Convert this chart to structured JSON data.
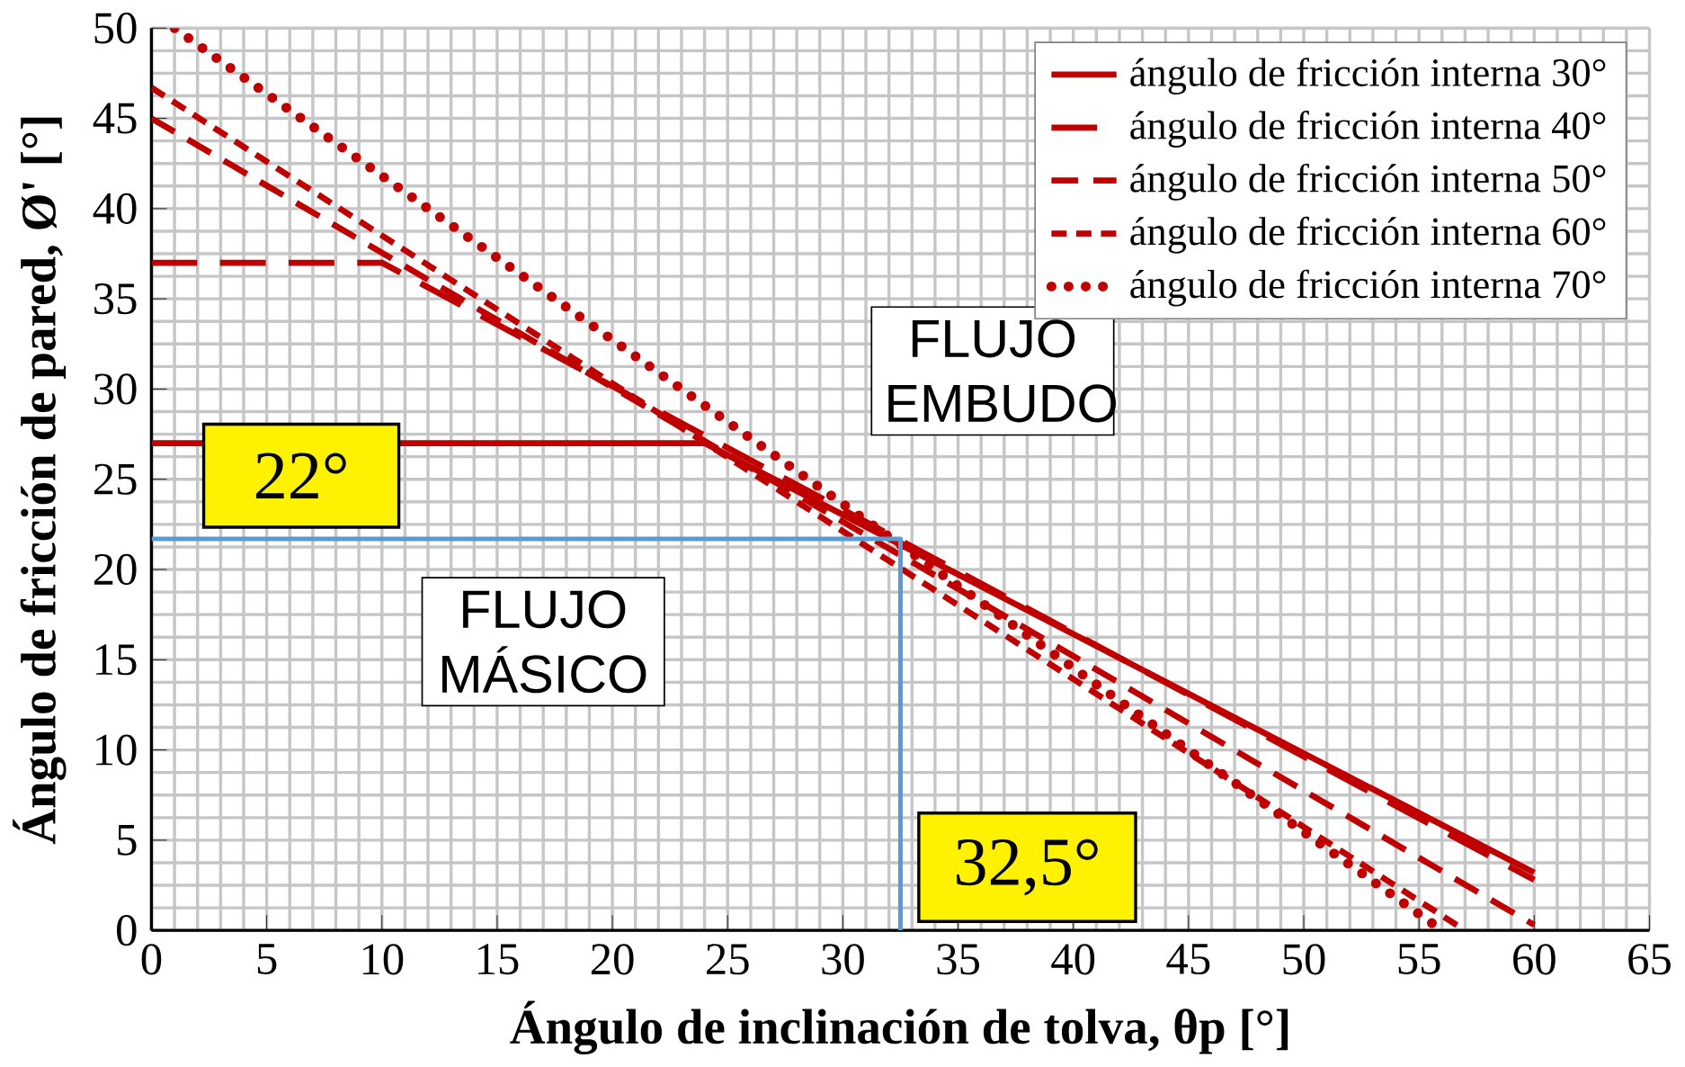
{
  "chart_data": {
    "type": "line",
    "xlabel": "Ángulo de inclinación de tolva, θp [°]",
    "ylabel": "Ángulo de fricción de pared, Ø' [°]",
    "xlim": [
      0,
      65
    ],
    "ylim": [
      0,
      50
    ],
    "xticks": [
      0,
      5,
      10,
      15,
      20,
      25,
      30,
      35,
      40,
      45,
      50,
      55,
      60,
      65
    ],
    "yticks": [
      0,
      5,
      10,
      15,
      20,
      25,
      30,
      35,
      40,
      45,
      50
    ],
    "grid": true,
    "legend": "top right",
    "marker": "none",
    "series": [
      {
        "name": "ángulo de fricción interna 30°",
        "color": "#c00000",
        "line_style": "solid",
        "x": [
          0,
          24,
          60
        ],
        "values": [
          27,
          27,
          3.2
        ]
      },
      {
        "name": "ángulo de fricción interna 40°",
        "color": "#c00000",
        "line_style": "dashed",
        "x": [
          0,
          10,
          60
        ],
        "values": [
          37,
          37,
          2.8
        ]
      },
      {
        "name": "ángulo de fricción interna 50°",
        "color": "#c00000",
        "line_style": "dashed",
        "x": [
          0,
          60
        ],
        "values": [
          45,
          0.3
        ]
      },
      {
        "name": "ángulo de fricción interna 60°",
        "color": "#c00000",
        "line_style": "dashed",
        "x": [
          0,
          57
        ],
        "values": [
          46.7,
          0
        ]
      },
      {
        "name": "ángulo de fricción interna 70°",
        "color": "#c00000",
        "line_style": "dotted",
        "x": [
          1,
          56
        ],
        "values": [
          50,
          0
        ]
      },
      {
        "color": "#5b9bd5",
        "line_style": "solid",
        "x": [
          0,
          32.5,
          32.5
        ],
        "values": [
          21.7,
          21.7,
          0
        ]
      }
    ],
    "annotations": [
      "22°",
      "32,5°",
      "FLUJO EMBUDO",
      "FLUJO MÁSICO"
    ]
  }
}
